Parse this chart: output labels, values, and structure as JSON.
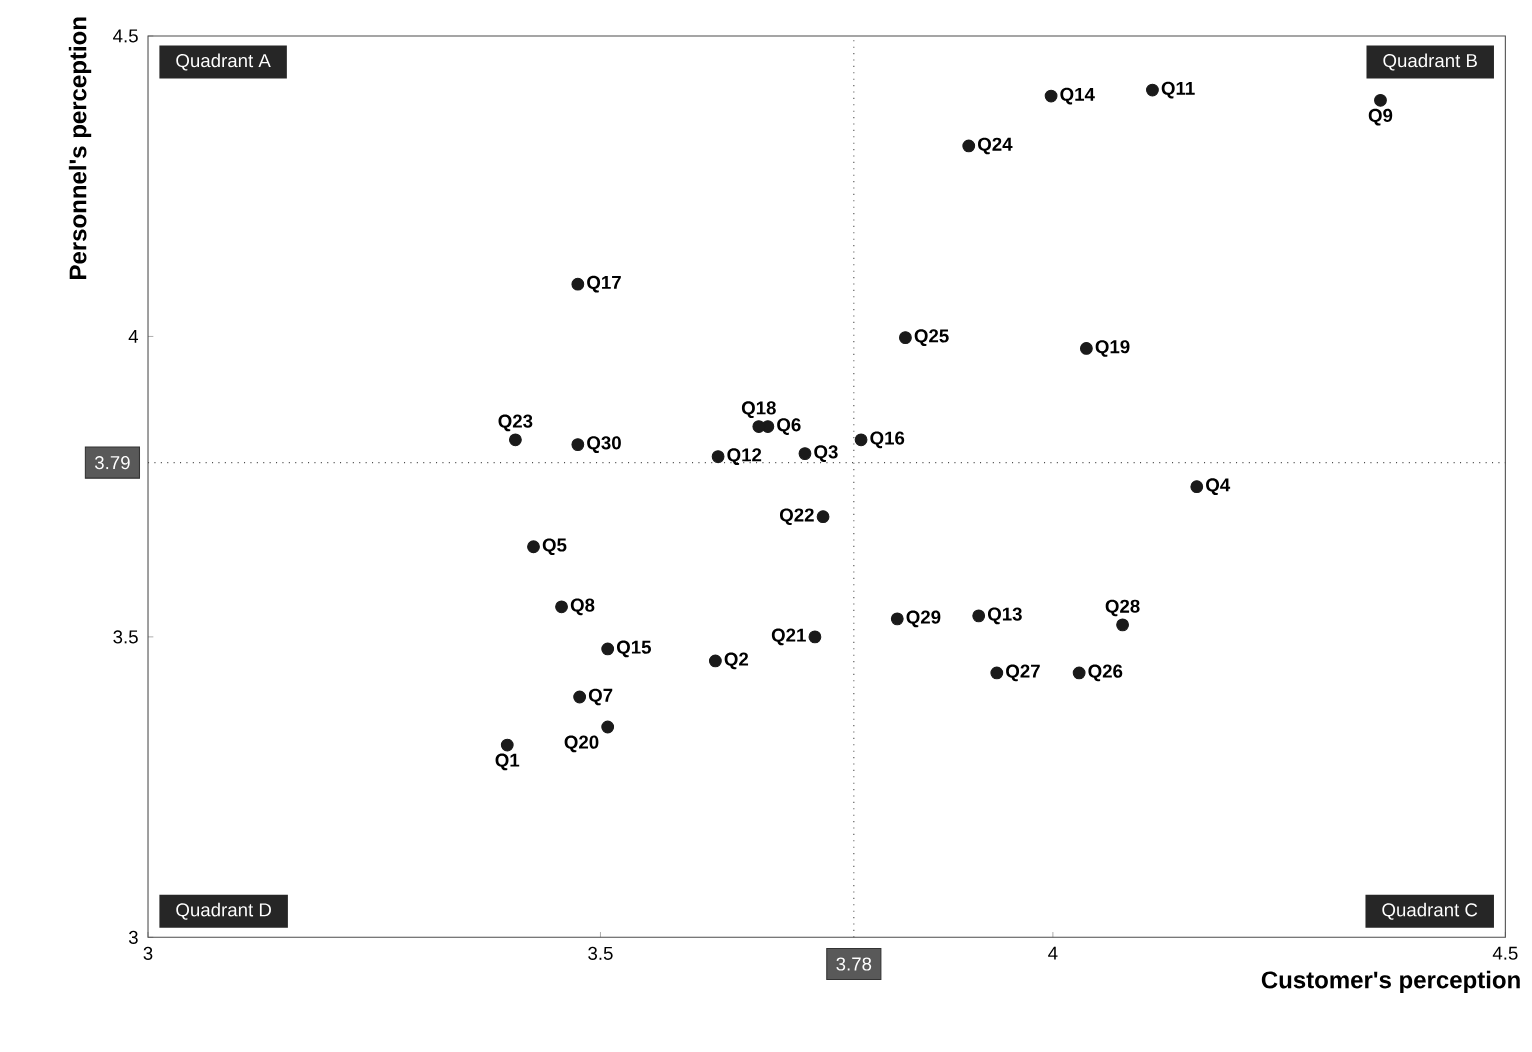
{
  "chart_data": {
    "type": "scatter",
    "xlabel": "Customer's perception",
    "ylabel": "Personnel's perception",
    "xlim": [
      3,
      4.5
    ],
    "ylim": [
      3,
      4.5
    ],
    "xticks": [
      3,
      3.5,
      4,
      4.5
    ],
    "yticks": [
      3,
      3.5,
      4,
      4.5
    ],
    "grid": false,
    "series": [
      {
        "color": "#1a1a1a",
        "x": [
          3.397,
          3.627,
          3.726,
          4.159,
          3.426,
          3.685,
          3.477,
          3.457,
          4.362,
          4.11,
          3.63,
          3.918,
          3.998,
          3.508,
          3.788,
          3.475,
          3.675,
          4.037,
          3.508,
          3.737,
          3.746,
          3.406,
          3.907,
          3.837,
          4.029,
          3.938,
          4.077,
          3.828,
          3.475
        ],
        "values": [
          3.32,
          3.46,
          3.805,
          3.75,
          3.65,
          3.85,
          3.4,
          3.55,
          4.393,
          4.41,
          3.8,
          3.535,
          4.4,
          3.48,
          3.828,
          4.087,
          3.85,
          3.98,
          3.35,
          3.5,
          3.7,
          3.828,
          4.317,
          3.998,
          3.44,
          3.44,
          3.52,
          3.53,
          3.82
        ]
      }
    ],
    "ref_lines": [
      {
        "axis": "x",
        "value": 3.78,
        "label": "3.78",
        "line_style": "dotted"
      },
      {
        "axis": "y",
        "value": 3.79,
        "label": "3.79",
        "line_style": "dotted"
      }
    ],
    "annotations": [
      "Quadrant A",
      "Quadrant B",
      "Quadrant C",
      "Quadrant D",
      {
        "text": "Q1",
        "x": 3.397,
        "y": 3.32
      },
      {
        "text": "Q2",
        "x": 3.627,
        "y": 3.46
      },
      {
        "text": "Q3",
        "x": 3.726,
        "y": 3.805
      },
      {
        "text": "Q4",
        "x": 4.159,
        "y": 3.75
      },
      {
        "text": "Q5",
        "x": 3.426,
        "y": 3.65
      },
      {
        "text": "Q6",
        "x": 3.685,
        "y": 3.85
      },
      {
        "text": "Q7",
        "x": 3.477,
        "y": 3.4
      },
      {
        "text": "Q8",
        "x": 3.457,
        "y": 3.55
      },
      {
        "text": "Q9",
        "x": 4.362,
        "y": 4.393
      },
      {
        "text": "Q11",
        "x": 4.11,
        "y": 4.41
      },
      {
        "text": "Q12",
        "x": 3.63,
        "y": 3.8
      },
      {
        "text": "Q13",
        "x": 3.918,
        "y": 3.535
      },
      {
        "text": "Q14",
        "x": 3.998,
        "y": 4.4
      },
      {
        "text": "Q15",
        "x": 3.508,
        "y": 3.48
      },
      {
        "text": "Q16",
        "x": 3.788,
        "y": 3.828
      },
      {
        "text": "Q17",
        "x": 3.475,
        "y": 4.087
      },
      {
        "text": "Q18",
        "x": 3.675,
        "y": 3.85
      },
      {
        "text": "Q19",
        "x": 4.037,
        "y": 3.98
      },
      {
        "text": "Q20",
        "x": 3.508,
        "y": 3.35
      },
      {
        "text": "Q21",
        "x": 3.737,
        "y": 3.5
      },
      {
        "text": "Q22",
        "x": 3.746,
        "y": 3.7
      },
      {
        "text": "Q23",
        "x": 3.406,
        "y": 3.828
      },
      {
        "text": "Q24",
        "x": 3.907,
        "y": 4.317
      },
      {
        "text": "Q25",
        "x": 3.837,
        "y": 3.998
      },
      {
        "text": "Q26",
        "x": 4.029,
        "y": 3.44
      },
      {
        "text": "Q27",
        "x": 3.938,
        "y": 3.44
      },
      {
        "text": "Q28",
        "x": 4.077,
        "y": 3.52
      },
      {
        "text": "Q29",
        "x": 3.828,
        "y": 3.53
      },
      {
        "text": "Q30",
        "x": 3.475,
        "y": 3.82
      }
    ]
  }
}
